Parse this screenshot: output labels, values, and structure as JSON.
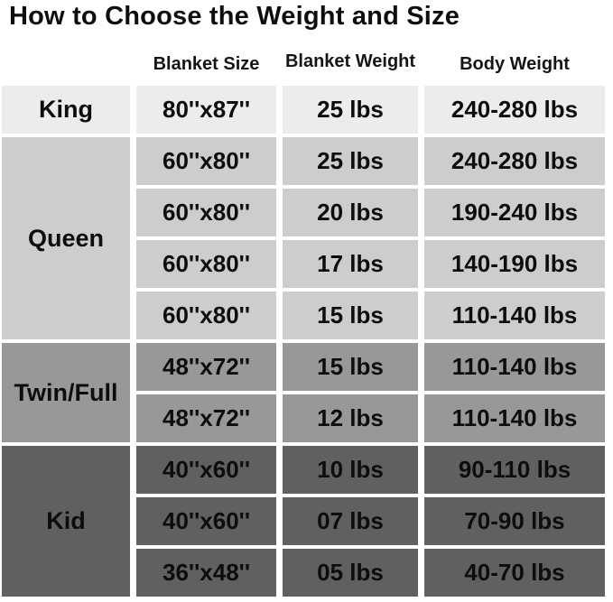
{
  "title": "How to Choose the Weight and Size",
  "table": {
    "columns": [
      {
        "key": "blanket_size",
        "label": "Blanket Size"
      },
      {
        "key": "blanket_weight",
        "label": "Blanket Weight"
      },
      {
        "key": "body_weight",
        "label": "Body Weight"
      }
    ],
    "groups": [
      {
        "label": "King",
        "color": "#ececec",
        "rows": [
          {
            "blanket_size": "80''x87''",
            "blanket_weight": "25 lbs",
            "body_weight": "240-280 lbs"
          }
        ]
      },
      {
        "label": "Queen",
        "color": "#cdcdcd",
        "rows": [
          {
            "blanket_size": "60''x80''",
            "blanket_weight": "25 lbs",
            "body_weight": "240-280 lbs"
          },
          {
            "blanket_size": "60''x80''",
            "blanket_weight": "20 lbs",
            "body_weight": "190-240 lbs"
          },
          {
            "blanket_size": "60''x80''",
            "blanket_weight": "17 lbs",
            "body_weight": "140-190 lbs"
          },
          {
            "blanket_size": "60''x80''",
            "blanket_weight": "15 lbs",
            "body_weight": "110-140 lbs"
          }
        ]
      },
      {
        "label": "Twin/Full",
        "color": "#989898",
        "rows": [
          {
            "blanket_size": "48''x72''",
            "blanket_weight": "15 lbs",
            "body_weight": "110-140 lbs"
          },
          {
            "blanket_size": "48''x72''",
            "blanket_weight": "12 lbs",
            "body_weight": "110-140 lbs"
          }
        ]
      },
      {
        "label": "Kid",
        "color": "#606060",
        "rows": [
          {
            "blanket_size": "40''x60''",
            "blanket_weight": "10 lbs",
            "body_weight": "90-110 lbs"
          },
          {
            "blanket_size": "40''x60''",
            "blanket_weight": "07 lbs",
            "body_weight": "70-90 lbs"
          },
          {
            "blanket_size": "36''x48''",
            "blanket_weight": "05 lbs",
            "body_weight": "40-70 lbs"
          }
        ]
      }
    ]
  },
  "colors": {
    "background": "#ffffff",
    "text": "#0d0d0d",
    "king_row": "#ececec",
    "queen_rows": "#cdcdcd",
    "twin_full_rows": "#989898",
    "kid_rows": "#606060"
  },
  "chart_data": {
    "type": "table",
    "title": "How to Choose the Weight and Size",
    "columns": [
      "",
      "Blanket Size",
      "Blanket Weight",
      "Body Weight"
    ],
    "rows": [
      [
        "King",
        "80''x87''",
        "25 lbs",
        "240-280 lbs"
      ],
      [
        "Queen",
        "60''x80''",
        "25 lbs",
        "240-280 lbs"
      ],
      [
        "Queen",
        "60''x80''",
        "20 lbs",
        "190-240 lbs"
      ],
      [
        "Queen",
        "60''x80''",
        "17 lbs",
        "140-190 lbs"
      ],
      [
        "Queen",
        "60''x80''",
        "15 lbs",
        "110-140 lbs"
      ],
      [
        "Twin/Full",
        "48''x72''",
        "15 lbs",
        "110-140 lbs"
      ],
      [
        "Twin/Full",
        "48''x72''",
        "12 lbs",
        "110-140 lbs"
      ],
      [
        "Kid",
        "40''x60''",
        "10 lbs",
        "90-110 lbs"
      ],
      [
        "Kid",
        "40''x60''",
        "07 lbs",
        "70-90 lbs"
      ],
      [
        "Kid",
        "36''x48''",
        "05 lbs",
        "40-70 lbs"
      ]
    ]
  }
}
